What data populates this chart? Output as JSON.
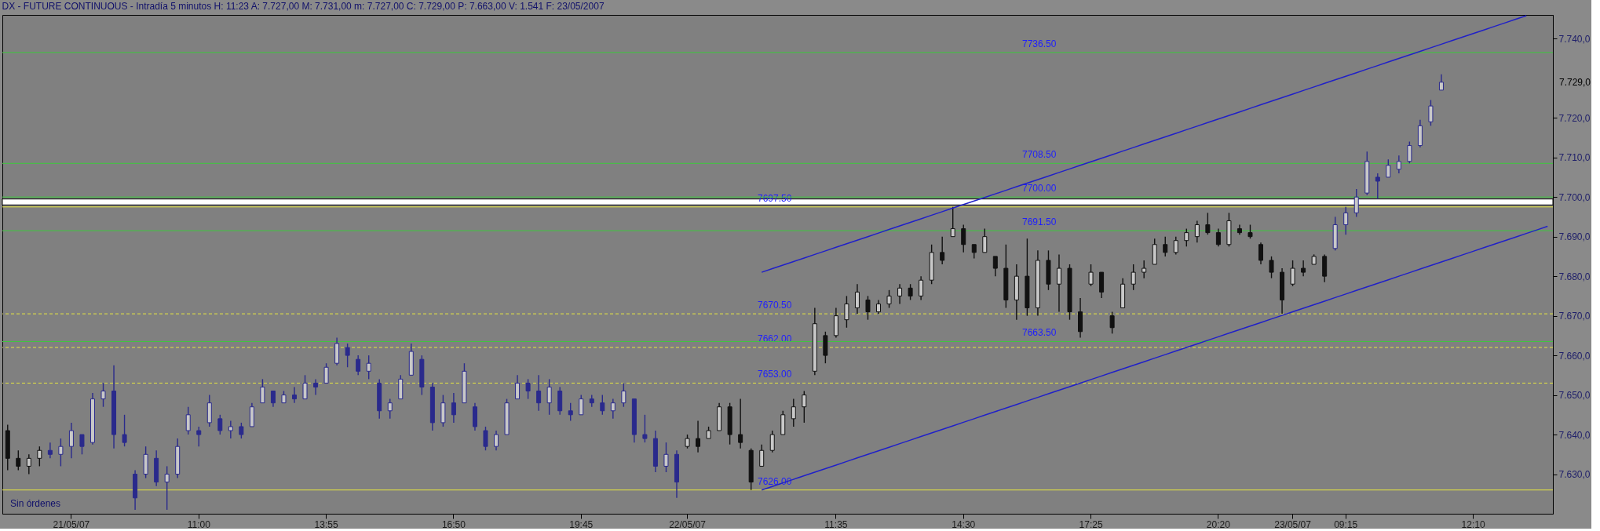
{
  "chart_data": {
    "type": "candlestick",
    "title": "DX - FUTURE CONTINUOUS - Intradía 5 minutos  H: 11:23  A: 7.727,00  M: 7.731,00  m: 7.727,00  C: 7.729,00  P: 7.663,00  V: 1.541  F: 23/05/2007",
    "categories": [
      null,
      null,
      null,
      null,
      null,
      null,
      "21/05/07",
      null,
      null,
      null,
      null,
      null,
      null,
      null,
      null,
      null,
      null,
      null,
      "11:00",
      null,
      null,
      null,
      null,
      null,
      null,
      null,
      null,
      null,
      null,
      null,
      "13:55",
      null,
      null,
      null,
      null,
      null,
      null,
      null,
      null,
      null,
      null,
      null,
      "16:50",
      null,
      null,
      null,
      null,
      null,
      null,
      null,
      null,
      null,
      null,
      null,
      "19:45",
      null,
      null,
      null,
      null,
      null,
      null,
      null,
      null,
      null,
      "22/05/07",
      null,
      null,
      null,
      null,
      null,
      null,
      null,
      null,
      null,
      null,
      null,
      null,
      null,
      "11:35",
      null,
      null,
      null,
      null,
      null,
      null,
      null,
      null,
      null,
      null,
      null,
      "14:30",
      null,
      null,
      null,
      null,
      null,
      null,
      null,
      null,
      null,
      null,
      null,
      "17:25",
      null,
      null,
      null,
      null,
      null,
      null,
      null,
      null,
      null,
      null,
      null,
      "20:20",
      null,
      null,
      null,
      null,
      null,
      null,
      "23/05/07",
      null,
      null,
      null,
      null,
      "09:15",
      null,
      null,
      null,
      null,
      null,
      null,
      null,
      null,
      null,
      null,
      null,
      "12:10",
      null,
      null,
      null,
      null,
      null,
      null,
      null
    ],
    "ylim": [
      7620,
      7746
    ],
    "yticks": [
      {
        "value": 7630,
        "label": "7.630,0"
      },
      {
        "value": 7640,
        "label": "7.640,0"
      },
      {
        "value": 7650,
        "label": "7.650,0"
      },
      {
        "value": 7660,
        "label": "7.660,0"
      },
      {
        "value": 7670,
        "label": "7.670,0"
      },
      {
        "value": 7680,
        "label": "7.680,0"
      },
      {
        "value": 7690,
        "label": "7.690,0"
      },
      {
        "value": 7700,
        "label": "7.700,0"
      },
      {
        "value": 7710,
        "label": "7.710,0"
      },
      {
        "value": 7720,
        "label": "7.720,0"
      },
      {
        "value": 7740,
        "label": "7.740,0"
      }
    ],
    "grid": false,
    "ohlc": [
      [
        7641,
        7642.5,
        7631,
        7634
      ],
      [
        7634,
        7636,
        7631,
        7632
      ],
      [
        7632,
        7635,
        7630,
        7634
      ],
      [
        7634,
        7637,
        7632,
        7636
      ],
      [
        7636,
        7638,
        7634,
        7635
      ],
      [
        7635,
        7639,
        7632,
        7637
      ],
      [
        7637,
        7643,
        7634,
        7641
      ],
      [
        7640,
        7640,
        7635,
        7637
      ],
      [
        7638,
        7650.5,
        7637.5,
        7649
      ],
      [
        7649,
        7653,
        7647,
        7651
      ],
      [
        7651,
        7657.5,
        7636.5,
        7640
      ],
      [
        7640,
        7645,
        7637,
        7638
      ],
      [
        7630,
        7631,
        7621,
        7624
      ],
      [
        7630,
        7637,
        7629,
        7635
      ],
      [
        7634,
        7636,
        7627,
        7628
      ],
      [
        7628,
        7632,
        7621,
        7630
      ],
      [
        7630,
        7639,
        7629,
        7637
      ],
      [
        7641,
        7647,
        7640,
        7645
      ],
      [
        7641,
        7642,
        7637,
        7640
      ],
      [
        7643,
        7650,
        7642,
        7648
      ],
      [
        7644,
        7645,
        7640,
        7641
      ],
      [
        7641,
        7643.5,
        7639,
        7642
      ],
      [
        7642,
        7643,
        7639,
        7640
      ],
      [
        7642,
        7648,
        7642,
        7647
      ],
      [
        7648,
        7654,
        7648,
        7652
      ],
      [
        7651,
        7651,
        7647,
        7648
      ],
      [
        7648,
        7651,
        7648,
        7650
      ],
      [
        7650,
        7652,
        7648,
        7649
      ],
      [
        7649,
        7655,
        7649,
        7653
      ],
      [
        7653,
        7654,
        7650,
        7652
      ],
      [
        7653,
        7658,
        7653,
        7657
      ],
      [
        7658,
        7664.5,
        7657.5,
        7663
      ],
      [
        7662,
        7663,
        7657,
        7660
      ],
      [
        7659,
        7660,
        7655,
        7656
      ],
      [
        7656,
        7660,
        7654,
        7658
      ],
      [
        7653,
        7654,
        7644,
        7646
      ],
      [
        7646,
        7649,
        7644,
        7648
      ],
      [
        7649,
        7655,
        7649,
        7654
      ],
      [
        7655,
        7663,
        7655,
        7661
      ],
      [
        7659,
        7660,
        7650,
        7652
      ],
      [
        7652,
        7653,
        7641,
        7643
      ],
      [
        7643,
        7650,
        7642,
        7648
      ],
      [
        7648,
        7650.5,
        7643,
        7645
      ],
      [
        7648,
        7658,
        7648,
        7656
      ],
      [
        7647,
        7648,
        7641,
        7642
      ],
      [
        7641,
        7642,
        7636,
        7637
      ],
      [
        7637,
        7641,
        7636,
        7640
      ],
      [
        7640,
        7649,
        7640,
        7648
      ],
      [
        7649,
        7655,
        7649,
        7653
      ],
      [
        7653,
        7654,
        7649,
        7651
      ],
      [
        7651,
        7655,
        7646,
        7648
      ],
      [
        7648,
        7654,
        7645,
        7652
      ],
      [
        7651,
        7652,
        7645,
        7646
      ],
      [
        7646,
        7648,
        7643.5,
        7645
      ],
      [
        7645,
        7650,
        7645,
        7649
      ],
      [
        7649,
        7650,
        7647,
        7648
      ],
      [
        7648,
        7650,
        7645,
        7646
      ],
      [
        7646,
        7649,
        7644,
        7648
      ],
      [
        7648,
        7653,
        7647,
        7651
      ],
      [
        7649,
        7649,
        7638,
        7640
      ],
      [
        7640,
        7645,
        7638,
        7639
      ],
      [
        7639,
        7641,
        7630.5,
        7632
      ],
      [
        7632,
        7638,
        7630.5,
        7635
      ],
      [
        7635,
        7636,
        7624,
        7628
      ],
      [
        7637,
        7640,
        7636.5,
        7639
      ],
      [
        7639,
        7643.5,
        7635.5,
        7637
      ],
      [
        7639,
        7642,
        7639,
        7641
      ],
      [
        7641,
        7648,
        7641,
        7647
      ],
      [
        7647,
        7648,
        7637.5,
        7640
      ],
      [
        7640,
        7649,
        7636.5,
        7638
      ],
      [
        7636,
        7636.5,
        7626,
        7628
      ],
      [
        7632,
        7637.5,
        7632,
        7636
      ],
      [
        7636,
        7641,
        7635.5,
        7640
      ],
      [
        7640,
        7646,
        7640,
        7645
      ],
      [
        7644,
        7649,
        7642,
        7647
      ],
      [
        7647,
        7651,
        7643,
        7650
      ],
      [
        7656,
        7672,
        7655,
        7668
      ],
      [
        7665,
        7666,
        7658,
        7660
      ],
      [
        7665,
        7672,
        7664.5,
        7670
      ],
      [
        7669,
        7675,
        7667,
        7673
      ],
      [
        7672,
        7678,
        7670.5,
        7676
      ],
      [
        7674,
        7675,
        7669,
        7671
      ],
      [
        7671,
        7674,
        7670.5,
        7673
      ],
      [
        7673,
        7676.5,
        7672,
        7675
      ],
      [
        7675,
        7678,
        7673,
        7677
      ],
      [
        7677,
        7678,
        7674,
        7675
      ],
      [
        7675,
        7680,
        7674,
        7679
      ],
      [
        7679,
        7688,
        7678,
        7686
      ],
      [
        7686,
        7690,
        7683,
        7684
      ],
      [
        7690,
        7697.5,
        7690,
        7692
      ],
      [
        7692,
        7693,
        7686,
        7688
      ],
      [
        7688,
        7688,
        7684.5,
        7686
      ],
      [
        7686,
        7692,
        7686,
        7690
      ],
      [
        7685,
        7685,
        7680,
        7682
      ],
      [
        7682,
        7688,
        7672,
        7674
      ],
      [
        7674,
        7683,
        7669,
        7680
      ],
      [
        7680,
        7689.5,
        7670,
        7672
      ],
      [
        7672,
        7686.5,
        7670,
        7684
      ],
      [
        7684,
        7686.5,
        7676.5,
        7678
      ],
      [
        7678,
        7685.5,
        7671,
        7682
      ],
      [
        7682,
        7683,
        7669,
        7671
      ],
      [
        7671,
        7674.5,
        7664.5,
        7666
      ],
      [
        7678,
        7683,
        7677.5,
        7681
      ],
      [
        7681,
        7681,
        7674.5,
        7676
      ],
      [
        7670,
        7671,
        7665.5,
        7667
      ],
      [
        7672,
        7679.5,
        7672,
        7678
      ],
      [
        7678,
        7683,
        7676.5,
        7681
      ],
      [
        7681,
        7684,
        7679.5,
        7682
      ],
      [
        7683,
        7689.5,
        7683,
        7688
      ],
      [
        7688,
        7690,
        7685,
        7686
      ],
      [
        7686,
        7690,
        7685.5,
        7689
      ],
      [
        7689,
        7692,
        7687.5,
        7691
      ],
      [
        7690,
        7694,
        7688.5,
        7693
      ],
      [
        7693,
        7696,
        7690.5,
        7691
      ],
      [
        7691,
        7692,
        7687.5,
        7688
      ],
      [
        7688,
        7696,
        7687.5,
        7694
      ],
      [
        7692,
        7693,
        7690.5,
        7691
      ],
      [
        7691,
        7693,
        7689.5,
        7690
      ],
      [
        7688,
        7688.5,
        7683,
        7684
      ],
      [
        7684,
        7685,
        7679.5,
        7681
      ],
      [
        7681,
        7682,
        7670.5,
        7674
      ],
      [
        7678,
        7684,
        7677.5,
        7682
      ],
      [
        7682,
        7684,
        7680,
        7681
      ],
      [
        7683,
        7685.5,
        7683,
        7685
      ],
      [
        7685,
        7685.5,
        7678.5,
        7680
      ],
      [
        7687,
        7695,
        7686.5,
        7693
      ],
      [
        7693,
        7697.5,
        7690.5,
        7696
      ],
      [
        7696,
        7702,
        7695,
        7700
      ],
      [
        7701,
        7711.5,
        7700.5,
        7709
      ],
      [
        7705,
        7706,
        7699.5,
        7704
      ],
      [
        7705,
        7709.5,
        7705,
        7708
      ],
      [
        7707,
        7710.5,
        7706,
        7709
      ],
      [
        7709,
        7714,
        7708.5,
        7713
      ],
      [
        7713,
        7719.5,
        7712.5,
        7718
      ],
      [
        7719,
        7724.5,
        7718,
        7723
      ],
      [
        7727,
        7731,
        7727,
        7729
      ],
      null,
      null,
      null,
      null,
      null,
      null,
      null,
      null,
      null,
      null
    ],
    "colors": [
      "#111111",
      "#111111",
      "#111111",
      "#111111",
      "#2a2a8c",
      "#2a2a8c",
      "#2a2a8c",
      "#2a2a8c",
      "#2a2a8c",
      "#2a2a8c",
      "#2a2a8c",
      "#2a2a8c",
      "#2a2a8c",
      "#2a2a8c",
      "#2a2a8c",
      "#2a2a8c",
      "#2a2a8c",
      "#2a2a8c",
      "#2a2a8c",
      "#2a2a8c",
      "#2a2a8c",
      "#2a2a8c",
      "#2a2a8c",
      "#2a2a8c",
      "#2a2a8c",
      "#2a2a8c",
      "#2a2a8c",
      "#2a2a8c",
      "#2a2a8c",
      "#2a2a8c",
      "#2a2a8c",
      "#2a2a8c",
      "#2a2a8c",
      "#2a2a8c",
      "#2a2a8c",
      "#2a2a8c",
      "#2a2a8c",
      "#2a2a8c",
      "#2a2a8c",
      "#2a2a8c",
      "#2a2a8c",
      "#2a2a8c",
      "#2a2a8c",
      "#2a2a8c",
      "#2a2a8c",
      "#2a2a8c",
      "#2a2a8c",
      "#2a2a8c",
      "#2a2a8c",
      "#2a2a8c",
      "#2a2a8c",
      "#2a2a8c",
      "#2a2a8c",
      "#2a2a8c",
      "#2a2a8c",
      "#2a2a8c",
      "#2a2a8c",
      "#2a2a8c",
      "#2a2a8c",
      "#2a2a8c",
      "#2a2a8c",
      "#2a2a8c",
      "#2a2a8c",
      "#2a2a8c",
      "#111111",
      "#111111",
      "#111111",
      "#111111",
      "#111111",
      "#111111",
      "#111111",
      "#111111",
      "#111111",
      "#111111",
      "#111111",
      "#111111",
      "#111111",
      "#111111",
      "#111111",
      "#111111",
      "#111111",
      "#111111",
      "#111111",
      "#111111",
      "#111111",
      "#111111",
      "#111111",
      "#111111",
      "#111111",
      "#111111",
      "#111111",
      "#111111",
      "#111111",
      "#111111",
      "#111111",
      "#111111",
      "#111111",
      "#111111",
      "#111111",
      "#111111",
      "#111111",
      "#111111",
      "#111111",
      "#111111",
      "#111111",
      "#111111",
      "#111111",
      "#111111",
      "#111111",
      "#111111",
      "#111111",
      "#111111",
      "#111111",
      "#111111",
      "#111111",
      "#111111",
      "#111111",
      "#111111",
      "#111111",
      "#111111",
      "#111111",
      "#111111",
      "#111111",
      "#111111",
      "#111111",
      "#2a2a8c",
      "#2a2a8c",
      "#2a2a8c",
      "#2a2a8c",
      "#2a2a8c",
      "#2a2a8c",
      "#2a2a8c",
      "#2a2a8c",
      "#2a2a8c",
      "#2a2a8c",
      "#2a2a8c",
      "#111111",
      "#111111",
      "#111111",
      "#111111",
      "#111111",
      "#111111",
      "#111111",
      "#111111",
      "#111111",
      "#111111"
    ],
    "series": [
      {
        "type": "line",
        "color": "#2020c8",
        "values": [
          null,
          null,
          null,
          null,
          null,
          null,
          null,
          null,
          null,
          null,
          null,
          null,
          null,
          null,
          null,
          null,
          null,
          null,
          null,
          null,
          null,
          null,
          null,
          null,
          null,
          null,
          null,
          null,
          null,
          null,
          null,
          null,
          null,
          null,
          null,
          null,
          null,
          null,
          null,
          null,
          null,
          null,
          null,
          null,
          null,
          null,
          null,
          null,
          null,
          null,
          null,
          null,
          null,
          null,
          null,
          null,
          null,
          null,
          null,
          null,
          null,
          null,
          null,
          null,
          null,
          null,
          null,
          null,
          null,
          null,
          null,
          7681.0,
          7681.9,
          7682.8,
          7683.7,
          7684.6,
          7685.5,
          7686.4,
          7687.3,
          7688.2,
          7689.1,
          7690.0,
          7690.9,
          7691.8,
          7692.7,
          7693.6,
          7694.5,
          7695.4,
          7696.3,
          7697.2,
          7698.1,
          7699.0,
          7699.9,
          7700.8,
          7701.7,
          7702.6,
          7703.5,
          7704.4,
          7705.3,
          7706.2,
          7707.1,
          7708.0,
          7708.9,
          7709.8,
          7710.7,
          7711.6,
          7712.5,
          7713.4,
          7714.3,
          7715.2,
          7716.1,
          7717.0,
          7717.9,
          7718.8,
          7719.7,
          7720.6,
          7721.5,
          7722.4,
          7723.3,
          7724.2,
          7725.1,
          7726.0,
          7726.9,
          7727.8,
          7728.7,
          7729.6,
          7730.5,
          7731.4,
          7732.3,
          7733.2,
          7734.1,
          7735.0,
          7735.9,
          7736.8,
          7737.7,
          7738.6,
          7739.5,
          7740.4,
          7741.3,
          7742.2,
          7743.1,
          7744.0,
          7744.9,
          7745.8,
          null,
          null
        ]
      },
      {
        "type": "line",
        "color": "#2020c8",
        "values": [
          null,
          null,
          null,
          null,
          null,
          null,
          null,
          null,
          null,
          null,
          null,
          null,
          null,
          null,
          null,
          null,
          null,
          null,
          null,
          null,
          null,
          null,
          null,
          null,
          null,
          null,
          null,
          null,
          null,
          null,
          null,
          null,
          null,
          null,
          null,
          null,
          null,
          null,
          null,
          null,
          null,
          null,
          null,
          null,
          null,
          null,
          null,
          null,
          null,
          null,
          null,
          null,
          null,
          null,
          null,
          null,
          null,
          null,
          null,
          null,
          null,
          null,
          null,
          null,
          null,
          null,
          null,
          null,
          null,
          null,
          null,
          7626.0,
          7626.9,
          7627.8,
          7628.7,
          7629.6,
          7630.5,
          7631.4,
          7632.3,
          7633.2,
          7634.1,
          7635.0,
          7635.9,
          7636.8,
          7637.7,
          7638.6,
          7639.5,
          7640.4,
          7641.3,
          7642.2,
          7643.1,
          7644.0,
          7644.9,
          7645.8,
          7646.7,
          7647.6,
          7648.5,
          7649.4,
          7650.3,
          7651.2,
          7652.1,
          7653.0,
          7653.9,
          7654.8,
          7655.7,
          7656.6,
          7657.5,
          7658.4,
          7659.3,
          7660.2,
          7661.1,
          7662.0,
          7662.9,
          7663.8,
          7664.7,
          7665.6,
          7666.5,
          7667.4,
          7668.3,
          7669.2,
          7670.1,
          7671.0,
          7671.9,
          7672.8,
          7673.7,
          7674.6,
          7675.5,
          7676.4,
          7677.3,
          7678.2,
          7679.1,
          7680.0,
          7680.9,
          7681.8,
          7682.7,
          7683.6,
          7684.5,
          7685.4,
          7686.3,
          7687.2,
          7688.1,
          7689.0,
          7689.9,
          7690.8,
          7691.7,
          7692.6
        ]
      }
    ],
    "bands": [
      {
        "axis": "y",
        "from": 7698,
        "to": 7699.5,
        "color": "#ffffff"
      }
    ],
    "ref_lines": [
      {
        "axis": "y",
        "value": 7697.5,
        "label": "7697.50",
        "color": "#e6e640",
        "line_style": "solid"
      },
      {
        "axis": "y",
        "value": 7670.5,
        "label": "7670.50",
        "color": "#e6e640",
        "line_style": "dashed"
      },
      {
        "axis": "y",
        "value": 7662,
        "label": "7662.00",
        "color": "#e6e640",
        "line_style": "dashed"
      },
      {
        "axis": "y",
        "value": 7653,
        "label": "7653.00",
        "color": "#e6e640",
        "line_style": "dashed"
      },
      {
        "axis": "y",
        "value": 7626,
        "label": "7626.00",
        "color": "#e6e640",
        "line_style": "solid"
      },
      {
        "axis": "y",
        "value": 7736.5,
        "label": "7736.50",
        "color": "#3cc83c",
        "line_style": "solid"
      },
      {
        "axis": "y",
        "value": 7708.5,
        "label": "7708.50",
        "color": "#3cc83c",
        "line_style": "solid"
      },
      {
        "axis": "y",
        "value": 7700,
        "label": "7700.00",
        "color": "#3cc83c",
        "line_style": "solid"
      },
      {
        "axis": "y",
        "value": 7691.5,
        "label": "7691.50",
        "color": "#3cc83c",
        "line_style": "solid"
      },
      {
        "axis": "y",
        "value": 7663.5,
        "label": "7663.50",
        "color": "#3cc83c",
        "line_style": "solid"
      }
    ],
    "annotations": [
      "Sin órdenes",
      "7.729,0"
    ]
  }
}
